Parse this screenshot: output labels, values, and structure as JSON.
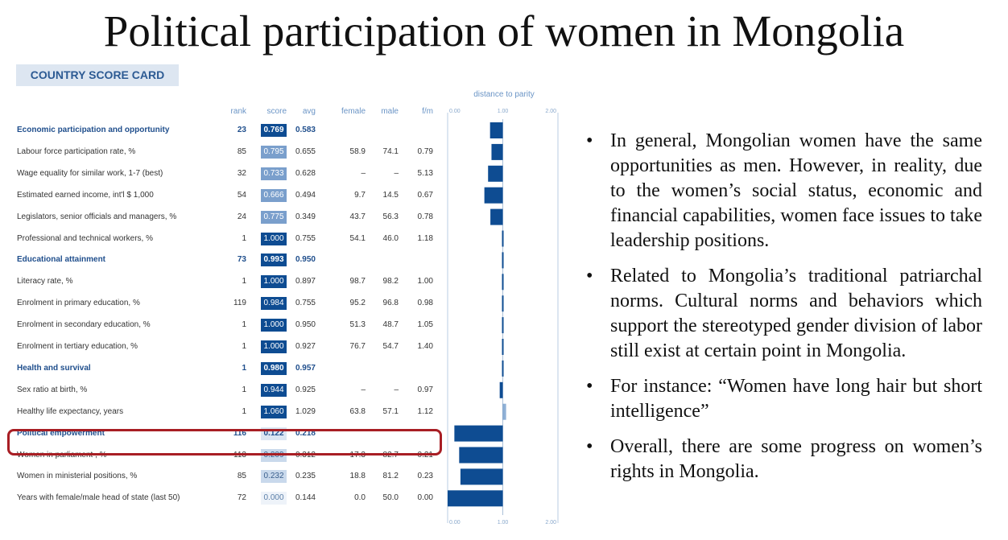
{
  "slide": {
    "title": "Political participation of women in Mongolia"
  },
  "scorecard": {
    "badge": "COUNTRY SCORE CARD",
    "parity_label": "distance to parity",
    "headers": {
      "rank": "rank",
      "score": "score",
      "avg": "avg",
      "female": "female",
      "male": "male",
      "fm": "f/m"
    },
    "axis_ticks": [
      "0.00",
      "1.00",
      "2.00"
    ],
    "rows": [
      {
        "label": "Economic participation and opportunity",
        "section": true,
        "rank": "23",
        "score": "0.769",
        "avg": "0.583",
        "female": "",
        "male": "",
        "fm": "",
        "score_value": 0.769
      },
      {
        "label": "Labour force participation rate, %",
        "section": false,
        "rank": "85",
        "score": "0.795",
        "avg": "0.655",
        "female": "58.9",
        "male": "74.1",
        "fm": "0.79",
        "score_value": 0.795
      },
      {
        "label": "Wage equality for similar work, 1-7 (best)",
        "section": false,
        "rank": "32",
        "score": "0.733",
        "avg": "0.628",
        "female": "–",
        "male": "–",
        "fm": "5.13",
        "score_value": 0.733
      },
      {
        "label": "Estimated earned income, int'l $ 1,000",
        "section": false,
        "rank": "54",
        "score": "0.666",
        "avg": "0.494",
        "female": "9.7",
        "male": "14.5",
        "fm": "0.67",
        "score_value": 0.666
      },
      {
        "label": "Legislators, senior officials and managers, %",
        "section": false,
        "rank": "24",
        "score": "0.775",
        "avg": "0.349",
        "female": "43.7",
        "male": "56.3",
        "fm": "0.78",
        "score_value": 0.775
      },
      {
        "label": "Professional and technical workers, %",
        "section": false,
        "rank": "1",
        "score": "1.000",
        "avg": "0.755",
        "female": "54.1",
        "male": "46.0",
        "fm": "1.18",
        "score_value": 1.0
      },
      {
        "label": "Educational attainment",
        "section": true,
        "rank": "73",
        "score": "0.993",
        "avg": "0.950",
        "female": "",
        "male": "",
        "fm": "",
        "score_value": 0.993
      },
      {
        "label": "Literacy rate, %",
        "section": false,
        "rank": "1",
        "score": "1.000",
        "avg": "0.897",
        "female": "98.7",
        "male": "98.2",
        "fm": "1.00",
        "score_value": 1.0
      },
      {
        "label": "Enrolment in primary education, %",
        "section": false,
        "rank": "119",
        "score": "0.984",
        "avg": "0.755",
        "female": "95.2",
        "male": "96.8",
        "fm": "0.98",
        "score_value": 0.984
      },
      {
        "label": "Enrolment in secondary education, %",
        "section": false,
        "rank": "1",
        "score": "1.000",
        "avg": "0.950",
        "female": "51.3",
        "male": "48.7",
        "fm": "1.05",
        "score_value": 1.0
      },
      {
        "label": "Enrolment in tertiary education, %",
        "section": false,
        "rank": "1",
        "score": "1.000",
        "avg": "0.927",
        "female": "76.7",
        "male": "54.7",
        "fm": "1.40",
        "score_value": 1.0
      },
      {
        "label": "Health and survival",
        "section": true,
        "rank": "1",
        "score": "0.980",
        "avg": "0.957",
        "female": "",
        "male": "",
        "fm": "",
        "score_value": 0.98
      },
      {
        "label": "Sex ratio at birth, %",
        "section": false,
        "rank": "1",
        "score": "0.944",
        "avg": "0.925",
        "female": "–",
        "male": "–",
        "fm": "0.97",
        "score_value": 0.944
      },
      {
        "label": "Healthy life expectancy, years",
        "section": false,
        "rank": "1",
        "score": "1.060",
        "avg": "1.029",
        "female": "63.8",
        "male": "57.1",
        "fm": "1.12",
        "score_value": 1.06
      },
      {
        "label": "Political empowerment",
        "section": true,
        "rank": "116",
        "score": "0.122",
        "avg": "0.218",
        "female": "",
        "male": "",
        "fm": "",
        "score_value": 0.122,
        "highlight": true
      },
      {
        "label": "Women in parliament , %",
        "section": false,
        "rank": "113",
        "score": "0.209",
        "avg": "0.312",
        "female": "17.3",
        "male": "82.7",
        "fm": "0.21",
        "score_value": 0.209
      },
      {
        "label": "Women in ministerial positions, %",
        "section": false,
        "rank": "85",
        "score": "0.232",
        "avg": "0.235",
        "female": "18.8",
        "male": "81.2",
        "fm": "0.23",
        "score_value": 0.232
      },
      {
        "label": "Years with female/male head of state (last 50)",
        "section": false,
        "rank": "72",
        "score": "0.000",
        "avg": "0.144",
        "female": "0.0",
        "male": "50.0",
        "fm": "0.00",
        "score_value": 0.0
      }
    ]
  },
  "chart_data": {
    "type": "bar",
    "title": "distance to parity",
    "orientation": "horizontal",
    "xlim": [
      0,
      2
    ],
    "xticks": [
      "0.00",
      "1.00",
      "2.00"
    ],
    "categories": [
      "Economic participation and opportunity",
      "Labour force participation rate, %",
      "Wage equality for similar work, 1-7 (best)",
      "Estimated earned income, int'l $ 1,000",
      "Legislators, senior officials and managers, %",
      "Professional and technical workers, %",
      "Educational attainment",
      "Literacy rate, %",
      "Enrolment in primary education, %",
      "Enrolment in secondary education, %",
      "Enrolment in tertiary education, %",
      "Health and survival",
      "Sex ratio at birth, %",
      "Healthy life expectancy, years",
      "Political empowerment",
      "Women in parliament , %",
      "Women in ministerial positions, %",
      "Years with female/male head of state (last 50)"
    ],
    "values": [
      0.769,
      0.795,
      0.733,
      0.666,
      0.775,
      1.0,
      0.993,
      1.0,
      0.984,
      1.0,
      1.0,
      0.98,
      0.944,
      1.06,
      0.122,
      0.209,
      0.232,
      0.0
    ],
    "reference_value": 1.0,
    "colors": {
      "bar": "#0e4c92",
      "light_bar": "#8fb0d6",
      "axis": "#b9cde3"
    }
  },
  "bullets": [
    "In general, Mongolian women have the same opportunities as men. However, in reality, due to the women’s social status, economic and financial capabilities, women face issues to take leadership positions.",
    "Related to Mongolia’s traditional patriarchal norms. Cultural norms and behaviors which support the stereotyped gender division of labor still exist at certain point in Mongolia.",
    "For instance: “Women have long hair but short intelligence”",
    "Overall, there are some progress on women’s rights in Mongolia."
  ],
  "bullet_symbol": "•"
}
